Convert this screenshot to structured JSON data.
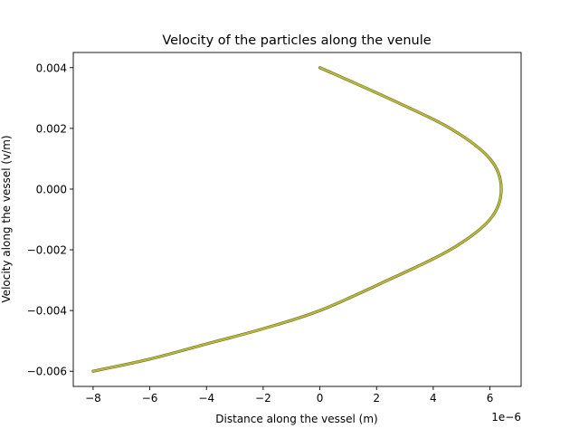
{
  "chart_data": {
    "type": "line",
    "title": "Velocity of the particles along the venule",
    "xlabel": "Distance along the vessel (m)",
    "ylabel": "Velocity along the vessel (v/m)",
    "x_offset_label": "1e−6",
    "xlim": [
      -8.7e-06,
      7.1e-06
    ],
    "ylim": [
      -0.0065,
      0.0045
    ],
    "xticks": [
      -8e-06,
      -6e-06,
      -4e-06,
      -2e-06,
      0,
      2e-06,
      4e-06,
      6e-06
    ],
    "xtick_labels": [
      "−8",
      "−6",
      "−4",
      "−2",
      "0",
      "2",
      "4",
      "6"
    ],
    "yticks": [
      -0.006,
      -0.004,
      -0.002,
      0.0,
      0.002,
      0.004
    ],
    "ytick_labels": [
      "−0.006",
      "−0.004",
      "−0.002",
      "0.000",
      "0.002",
      "0.004"
    ],
    "grid": false,
    "series": [
      {
        "color": "#bcbd22",
        "x": [
          0,
          2.4e-06,
          4.6e-06,
          6e-06,
          6.4e-06,
          6e-06,
          4.6e-06,
          2.4e-06,
          0,
          -2e-06,
          -4e-06,
          -6e-06,
          -8e-06
        ],
        "y": [
          0.004,
          0.003,
          0.002,
          0.001,
          0.0,
          -0.001,
          -0.002,
          -0.003,
          -0.004,
          -0.0046,
          -0.0051,
          -0.0056,
          -0.006
        ]
      }
    ]
  }
}
